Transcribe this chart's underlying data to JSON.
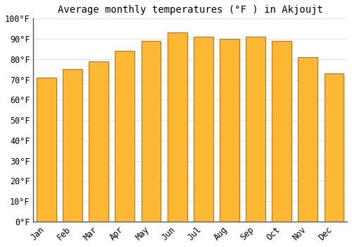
{
  "title": "Average monthly temperatures (°F ) in Akjoujt",
  "months": [
    "Jan",
    "Feb",
    "Mar",
    "Apr",
    "May",
    "Jun",
    "Jul",
    "Aug",
    "Sep",
    "Oct",
    "Nov",
    "Dec"
  ],
  "values": [
    71,
    75,
    79,
    84,
    89,
    93,
    91,
    90,
    91,
    89,
    81,
    73
  ],
  "bar_color": "#FDB833",
  "bar_edge_color": "#C87010",
  "background_color": "#ffffff",
  "grid_color": "#dddddd",
  "ytick_labels": [
    "0°F",
    "10°F",
    "20°F",
    "30°F",
    "40°F",
    "50°F",
    "60°F",
    "70°F",
    "80°F",
    "90°F",
    "100°F"
  ],
  "ytick_values": [
    0,
    10,
    20,
    30,
    40,
    50,
    60,
    70,
    80,
    90,
    100
  ],
  "ylim": [
    0,
    100
  ],
  "title_fontsize": 10,
  "tick_fontsize": 8.5
}
